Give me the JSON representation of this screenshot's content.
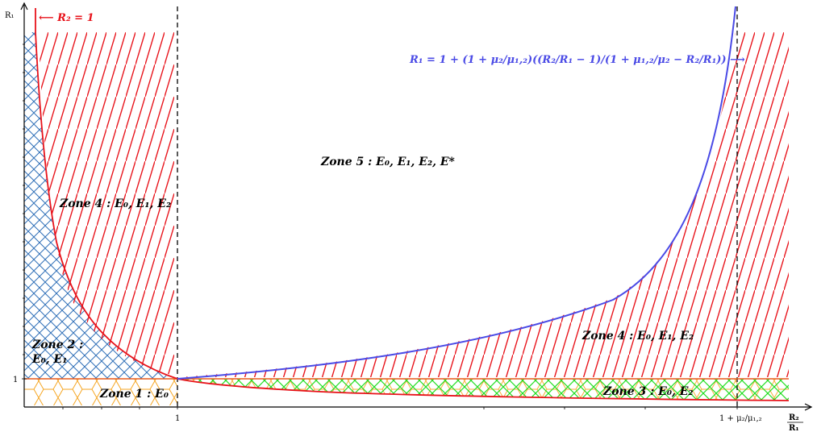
{
  "axes": {
    "y_label": "R₁",
    "x_label_num": "R₂",
    "x_label_den": "R₁",
    "y_tick_one": "1",
    "x_tick_one": "1",
    "x_tick_special": "1 + μ₂/μ₁,₂"
  },
  "curves": {
    "r2_eq_1_label": "⟵ R₂ = 1",
    "boundary_label": "R₁ = 1 + (1 + μ₂/μ₁,₂)((R₂/R₁ − 1)/(1 + μ₁,₂/μ₂ − R₂/R₁))  ⟶",
    "red_color": "#e8131b",
    "blue_color": "#4a4ae6"
  },
  "zones": {
    "zone1": "Zone 1 : E₀",
    "zone2_line1": "Zone 2 :",
    "zone2_line2": "E₀, E₁",
    "zone3": "Zone 3 : E₀, E₂",
    "zone4_left": "Zone 4 : E₀, E₁, E₂",
    "zone4_right": "Zone 4 : E₀, E₁, E₂",
    "zone5": "Zone 5 : E₀, E₁, E₂, E*"
  },
  "hatch_colors": {
    "orange_hex": "#f5a623",
    "blue_cross": "#2f6fb7",
    "green_cross": "#22dd22",
    "red_diag": "#e8131b"
  }
}
